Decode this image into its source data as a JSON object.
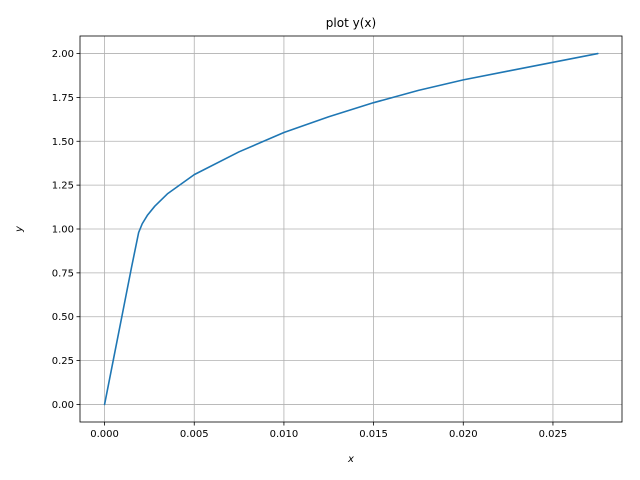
{
  "chart_data": {
    "type": "line",
    "title": "plot y(x)",
    "xlabel": "x",
    "ylabel": "y",
    "xlim": [
      -0.00137,
      0.02885
    ],
    "ylim": [
      -0.1,
      2.1
    ],
    "grid": true,
    "x_ticks": [
      "0.000",
      "0.005",
      "0.010",
      "0.015",
      "0.020",
      "0.025"
    ],
    "x_tick_values": [
      0,
      0.005,
      0.01,
      0.015,
      0.02,
      0.025
    ],
    "y_ticks": [
      "0.00",
      "0.25",
      "0.50",
      "0.75",
      "1.00",
      "1.25",
      "1.50",
      "1.75",
      "2.00"
    ],
    "y_tick_values": [
      0,
      0.25,
      0.5,
      0.75,
      1.0,
      1.25,
      1.5,
      1.75,
      2.0
    ],
    "series": [
      {
        "color": "#1f77b4",
        "x": [
          0,
          0.0005,
          0.001,
          0.0015,
          0.0019,
          0.0021,
          0.0024,
          0.0028,
          0.0035,
          0.005,
          0.0075,
          0.01,
          0.0125,
          0.015,
          0.0175,
          0.02,
          0.0225,
          0.025,
          0.0275
        ],
        "y": [
          0,
          0.26,
          0.52,
          0.78,
          0.98,
          1.03,
          1.08,
          1.13,
          1.2,
          1.31,
          1.44,
          1.55,
          1.64,
          1.72,
          1.79,
          1.85,
          1.9,
          1.95,
          2.0
        ]
      }
    ]
  }
}
